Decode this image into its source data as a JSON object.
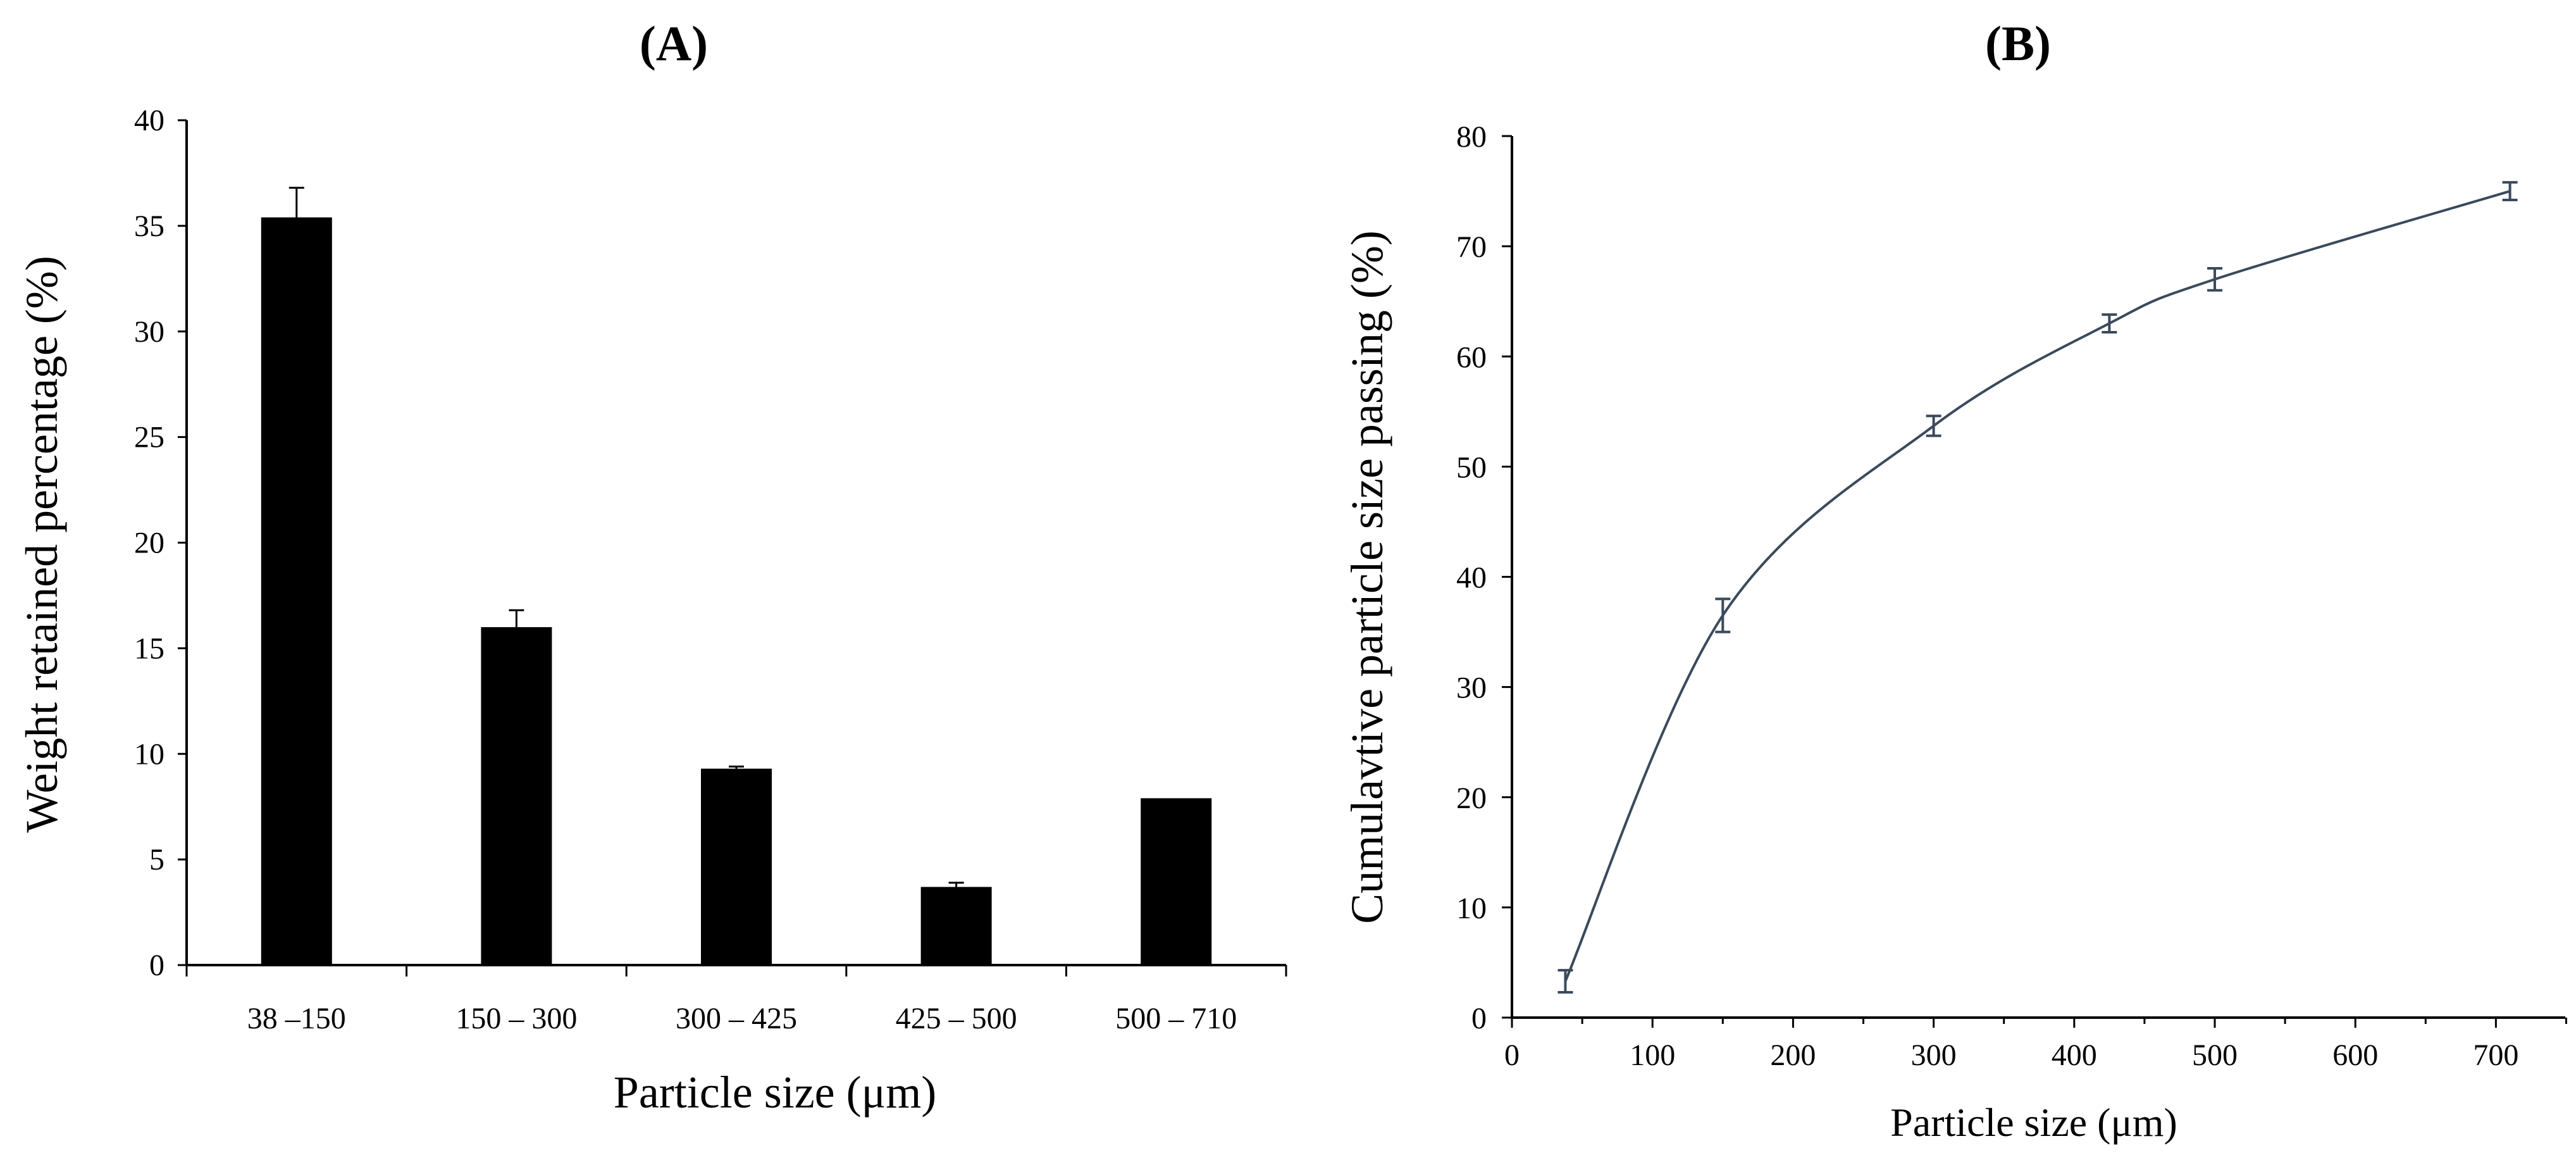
{
  "chart_data": [
    {
      "type": "bar",
      "panel_label": "(A)",
      "categories": [
        "38 –150",
        "150 – 300",
        "300 – 425",
        "425 – 500",
        "500 – 710"
      ],
      "series": [
        {
          "values": [
            35.4,
            16.0,
            9.3,
            3.7,
            7.9
          ],
          "error": [
            1.4,
            0.8,
            0.1,
            0.2,
            0.0
          ]
        }
      ],
      "xlabel": "Particle size (μm)",
      "ylabel": "Weight retained percentage (%)",
      "ylim": [
        0,
        40
      ],
      "yticks": [
        "0",
        "5",
        "10",
        "15",
        "20",
        "25",
        "30",
        "35",
        "40"
      ],
      "bar_color": "#000000",
      "grid": false,
      "legend": "none"
    },
    {
      "type": "line",
      "panel_label": "(B)",
      "x": [
        38,
        150,
        300,
        425,
        500,
        710
      ],
      "series": [
        {
          "values": [
            3.3,
            36.5,
            53.7,
            63.0,
            67.0,
            75.0
          ],
          "error": [
            1.0,
            1.5,
            0.9,
            0.8,
            1.0,
            0.8
          ]
        }
      ],
      "xlabel": "Particle size (μm)",
      "ylabel": "Cumulavtive particle size passing (%)",
      "xlim": [
        0,
        750
      ],
      "ylim": [
        0,
        80
      ],
      "xticks": [
        "0",
        "100",
        "200",
        "300",
        "400",
        "500",
        "600",
        "700"
      ],
      "yticks": [
        "0",
        "10",
        "20",
        "30",
        "40",
        "50",
        "60",
        "70",
        "80"
      ],
      "line_color": "#3a4a5c",
      "smooth": true,
      "grid": false,
      "legend": "none"
    }
  ]
}
